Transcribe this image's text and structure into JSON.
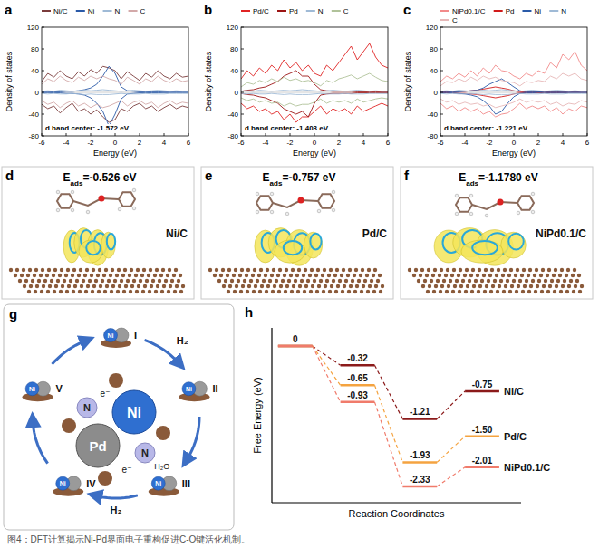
{
  "chart_data": [
    {
      "panel": "a",
      "type": "line",
      "x_label": "Energy (eV)",
      "y_label": "Density of states",
      "annotation": "d band center: -1.572 eV",
      "legend": "top",
      "xlim": [
        -6,
        6
      ],
      "xticks": [
        -6,
        -4,
        -2,
        0,
        2,
        4,
        6
      ],
      "ylim": [
        -80,
        120
      ],
      "yticks": [
        -80,
        -40,
        0,
        40,
        80,
        120
      ],
      "x": [
        -6,
        -5.5,
        -5,
        -4.5,
        -4,
        -3.5,
        -3,
        -2.5,
        -2,
        -1.5,
        -1,
        -0.5,
        0,
        0.5,
        1,
        1.5,
        2,
        2.5,
        3,
        3.5,
        4,
        4.5,
        5,
        5.5,
        6
      ],
      "series": [
        {
          "name": "Ni/C",
          "color": "#7a3b3b",
          "values": [
            20,
            35,
            28,
            40,
            30,
            25,
            38,
            30,
            42,
            35,
            48,
            45,
            40,
            25,
            38,
            30,
            22,
            35,
            28,
            40,
            30,
            25,
            35,
            28,
            30
          ],
          "values_down": [
            -22,
            -30,
            -25,
            -38,
            -28,
            -20,
            -35,
            -30,
            -40,
            -32,
            -45,
            -55,
            -50,
            -30,
            -35,
            -25,
            -20,
            -30,
            -25,
            -35,
            -28,
            -22,
            -30,
            -25,
            -28
          ]
        },
        {
          "name": "Ni",
          "color": "#2a5aa8",
          "values": [
            0,
            0,
            1,
            1,
            2,
            2,
            3,
            5,
            8,
            15,
            30,
            48,
            35,
            10,
            3,
            2,
            1,
            1,
            1,
            1,
            0,
            0,
            0,
            0,
            0
          ],
          "values_down": [
            0,
            0,
            -1,
            -1,
            -2,
            -2,
            -3,
            -5,
            -10,
            -20,
            -35,
            -62,
            -40,
            -12,
            -3,
            -2,
            -1,
            -1,
            -1,
            -1,
            0,
            0,
            0,
            0,
            0
          ]
        },
        {
          "name": "N",
          "color": "#9fbad6",
          "values": [
            2,
            3,
            2,
            4,
            3,
            2,
            3,
            4,
            3,
            4,
            5,
            4,
            3,
            2,
            3,
            4,
            3,
            2,
            3,
            4,
            3,
            2,
            3,
            2,
            2
          ],
          "values_down": [
            -2,
            -3,
            -2,
            -3,
            -3,
            -2,
            -3,
            -4,
            -3,
            -4,
            -4,
            -4,
            -3,
            -2,
            -3,
            -3,
            -3,
            -2,
            -3,
            -3,
            -3,
            -2,
            -2,
            -2,
            -2
          ]
        },
        {
          "name": "C",
          "color": "#d3a9a9",
          "values": [
            15,
            25,
            20,
            30,
            22,
            18,
            28,
            22,
            30,
            25,
            30,
            25,
            22,
            15,
            28,
            22,
            15,
            25,
            20,
            30,
            22,
            18,
            25,
            20,
            22
          ],
          "values_down": [
            -15,
            -22,
            -18,
            -28,
            -20,
            -15,
            -25,
            -20,
            -28,
            -22,
            -28,
            -25,
            -20,
            -15,
            -25,
            -18,
            -15,
            -22,
            -18,
            -28,
            -20,
            -15,
            -22,
            -18,
            -20
          ]
        }
      ]
    },
    {
      "panel": "b",
      "type": "line",
      "x_label": "Energy (eV)",
      "y_label": "Density of states",
      "annotation": "d band center: -1.403 eV",
      "legend": "top",
      "xlim": [
        -6,
        6
      ],
      "xticks": [
        -6,
        -4,
        -2,
        0,
        2,
        4,
        6
      ],
      "ylim": [
        -80,
        120
      ],
      "yticks": [
        -80,
        -40,
        0,
        40,
        80,
        120
      ],
      "x": [
        -6,
        -5.5,
        -5,
        -4.5,
        -4,
        -3.5,
        -3,
        -2.5,
        -2,
        -1.5,
        -1,
        -0.5,
        0,
        0.5,
        1,
        1.5,
        2,
        2.5,
        3,
        3.5,
        4,
        4.5,
        5,
        5.5,
        6
      ],
      "series": [
        {
          "name": "Pd/C",
          "color": "#e02424",
          "values": [
            25,
            40,
            30,
            45,
            35,
            50,
            40,
            60,
            45,
            55,
            40,
            50,
            35,
            30,
            50,
            40,
            55,
            70,
            85,
            60,
            75,
            90,
            65,
            50,
            45
          ],
          "values_down": [
            -20,
            -30,
            -25,
            -35,
            -30,
            -40,
            -35,
            -50,
            -40,
            -55,
            -45,
            -45,
            -35,
            -25,
            -40,
            -30,
            -35,
            -30,
            -40,
            -25,
            -35,
            -30,
            -25,
            -20,
            -25
          ]
        },
        {
          "name": "Pd",
          "color": "#9c1414",
          "values": [
            2,
            4,
            5,
            8,
            10,
            15,
            20,
            30,
            35,
            40,
            30,
            30,
            15,
            5,
            3,
            2,
            2,
            2,
            2,
            1,
            1,
            1,
            1,
            1,
            1
          ],
          "values_down": [
            -2,
            -4,
            -5,
            -8,
            -10,
            -15,
            -20,
            -30,
            -35,
            -40,
            -35,
            -45,
            -20,
            -5,
            -3,
            -2,
            -2,
            -2,
            -2,
            -1,
            -1,
            -1,
            -1,
            -1,
            -1
          ]
        },
        {
          "name": "N",
          "color": "#9fbad6",
          "values": [
            2,
            3,
            2,
            4,
            3,
            2,
            3,
            4,
            3,
            4,
            5,
            4,
            3,
            2,
            3,
            4,
            3,
            2,
            3,
            4,
            3,
            2,
            3,
            2,
            2
          ],
          "values_down": [
            -2,
            -3,
            -2,
            -3,
            -3,
            -2,
            -3,
            -4,
            -3,
            -4,
            -4,
            -4,
            -3,
            -2,
            -3,
            -3,
            -3,
            -2,
            -3,
            -3,
            -3,
            -2,
            -2,
            -2,
            -2
          ]
        },
        {
          "name": "C",
          "color": "#b0c29a",
          "values": [
            10,
            18,
            15,
            22,
            18,
            25,
            20,
            28,
            22,
            25,
            20,
            22,
            18,
            12,
            22,
            18,
            25,
            28,
            32,
            25,
            30,
            35,
            28,
            22,
            20
          ],
          "values_down": [
            -10,
            -15,
            -12,
            -18,
            -15,
            -20,
            -18,
            -25,
            -20,
            -25,
            -22,
            -22,
            -18,
            -12,
            -20,
            -15,
            -18,
            -15,
            -20,
            -12,
            -18,
            -15,
            -12,
            -10,
            -12
          ]
        }
      ]
    },
    {
      "panel": "c",
      "type": "line",
      "x_label": "Energy (eV)",
      "y_label": "Density of states",
      "annotation": "d band center: -1.221 eV",
      "legend": "top",
      "xlim": [
        -6,
        6
      ],
      "xticks": [
        -6,
        -4,
        -2,
        0,
        2,
        4,
        6
      ],
      "ylim": [
        -80,
        120
      ],
      "yticks": [
        -80,
        -40,
        0,
        40,
        80,
        120
      ],
      "x": [
        -6,
        -5.5,
        -5,
        -4.5,
        -4,
        -3.5,
        -3,
        -2.5,
        -2,
        -1.5,
        -1,
        -0.5,
        0,
        0.5,
        1,
        1.5,
        2,
        2.5,
        3,
        3.5,
        4,
        4.5,
        5,
        5.5,
        6
      ],
      "series": [
        {
          "name": "NiPd0.1/C",
          "color": "#f28a8a",
          "values": [
            20,
            30,
            25,
            35,
            28,
            40,
            30,
            45,
            35,
            50,
            40,
            38,
            30,
            25,
            35,
            30,
            40,
            35,
            55,
            45,
            70,
            60,
            75,
            50,
            40
          ],
          "values_down": [
            -20,
            -30,
            -25,
            -35,
            -28,
            -35,
            -30,
            -40,
            -35,
            -45,
            -40,
            -38,
            -30,
            -20,
            -30,
            -25,
            -30,
            -25,
            -35,
            -28,
            -40,
            -30,
            -35,
            -25,
            -28
          ]
        },
        {
          "name": "Pd",
          "color": "#d11a1a",
          "values": [
            0,
            1,
            1,
            2,
            2,
            3,
            4,
            6,
            8,
            10,
            8,
            6,
            3,
            1,
            1,
            1,
            1,
            1,
            1,
            1,
            0,
            0,
            0,
            0,
            0
          ],
          "values_down": [
            0,
            -1,
            -1,
            -2,
            -2,
            -3,
            -4,
            -6,
            -8,
            -10,
            -8,
            -6,
            -3,
            -1,
            -1,
            -1,
            -1,
            -1,
            -1,
            -1,
            0,
            0,
            0,
            0,
            0
          ]
        },
        {
          "name": "Ni",
          "color": "#2a5aa8",
          "values": [
            0,
            0,
            1,
            1,
            2,
            3,
            4,
            8,
            15,
            20,
            25,
            18,
            10,
            3,
            1,
            1,
            1,
            0,
            0,
            0,
            0,
            0,
            0,
            0,
            0
          ],
          "values_down": [
            0,
            0,
            -1,
            -2,
            -3,
            -5,
            -8,
            -15,
            -25,
            -40,
            -35,
            -20,
            -8,
            -2,
            -1,
            -1,
            0,
            0,
            0,
            0,
            0,
            0,
            0,
            0,
            0
          ]
        },
        {
          "name": "N",
          "color": "#9fbad6",
          "values": [
            2,
            3,
            2,
            4,
            3,
            2,
            3,
            4,
            3,
            4,
            5,
            4,
            3,
            2,
            3,
            4,
            3,
            2,
            3,
            4,
            3,
            2,
            3,
            2,
            2
          ],
          "values_down": [
            -2,
            -3,
            -2,
            -3,
            -3,
            -2,
            -3,
            -4,
            -3,
            -4,
            -4,
            -4,
            -3,
            -2,
            -3,
            -3,
            -3,
            -2,
            -3,
            -3,
            -3,
            -2,
            -2,
            -2,
            -2
          ]
        },
        {
          "name": "C",
          "color": "#e6b8b8",
          "values": [
            12,
            20,
            18,
            25,
            20,
            28,
            22,
            30,
            25,
            28,
            22,
            20,
            18,
            12,
            20,
            18,
            22,
            20,
            30,
            25,
            35,
            30,
            35,
            25,
            22
          ],
          "values_down": [
            -12,
            -18,
            -15,
            -22,
            -18,
            -22,
            -20,
            -25,
            -22,
            -28,
            -25,
            -22,
            -18,
            -12,
            -18,
            -15,
            -18,
            -15,
            -22,
            -18,
            -25,
            -20,
            -22,
            -15,
            -18
          ]
        }
      ]
    },
    {
      "panel": "h",
      "type": "energy_profile",
      "y_label": "Free Energy (eV)",
      "x_label": "Reaction Coordinates",
      "categories": [
        null,
        null,
        null,
        null
      ],
      "ylim": [
        -2.6,
        0.3
      ],
      "yticks": [],
      "tick_labels": false,
      "data_labels": true,
      "legend": "right",
      "series": [
        {
          "name": "Ni/C",
          "color": "#8b1a1a",
          "values": [
            0,
            -0.32,
            -1.21,
            -0.75
          ],
          "value_labels": [
            "0",
            "-0.32",
            "-1.21",
            "-0.75"
          ]
        },
        {
          "name": "Pd/C",
          "color": "#f4a340",
          "values": [
            0,
            -0.65,
            -1.93,
            -1.5
          ],
          "value_labels": [
            "0",
            "-0.65",
            "-1.93",
            "-1.50"
          ]
        },
        {
          "name": "NiPd0.1/C",
          "color": "#f07b6b",
          "values": [
            0,
            -0.93,
            -2.33,
            -2.01
          ],
          "value_labels": [
            "0",
            "-0.93",
            "-2.33",
            "-2.01"
          ]
        }
      ]
    }
  ],
  "adsorption_panels": [
    {
      "panel": "d",
      "energy": {
        "symbol": "E",
        "subscript": "ads",
        "text": "=-0.526 eV"
      },
      "catalyst": "Ni/C"
    },
    {
      "panel": "e",
      "energy": {
        "symbol": "E",
        "subscript": "ads",
        "text": "=-0.757 eV"
      },
      "catalyst": "Pd/C"
    },
    {
      "panel": "f",
      "energy": {
        "symbol": "E",
        "subscript": "ads",
        "text": "=-1.1780 eV"
      },
      "catalyst": "NiPd0.1/C"
    }
  ],
  "cycle": {
    "panel": "g",
    "steps": [
      "I",
      "II",
      "III",
      "IV",
      "V"
    ],
    "station_metal": "Ni",
    "center_metals": [
      "Ni",
      "Pd"
    ],
    "ligands": [
      "N",
      "N"
    ],
    "electrons": [
      "e⁻",
      "e⁻"
    ],
    "reagents": [
      "H₂",
      "H₂"
    ],
    "byproduct": "H₂O"
  },
  "caption": "图4：DFT计算揭示Ni-Pd界面电子重构促进C-O键活化机制。"
}
